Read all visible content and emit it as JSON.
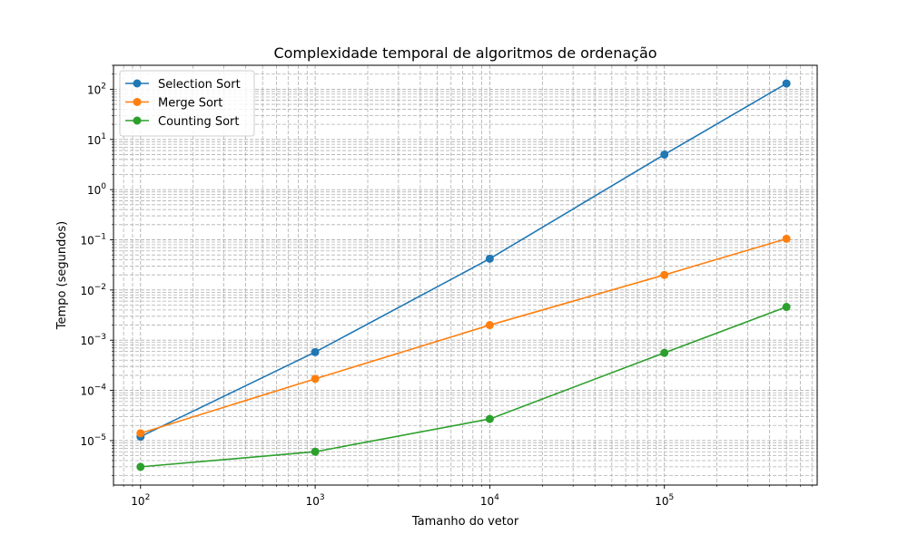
{
  "chart_data": {
    "type": "line",
    "title": "Complexidade temporal de algoritmos de ordenação",
    "xlabel": "Tamanho do vetor",
    "ylabel": "Tempo (segundos)",
    "x_scale": "log",
    "y_scale": "log",
    "xlim": [
      70,
      750000
    ],
    "ylim": [
      1.3e-06,
      300
    ],
    "x_ticks": [
      {
        "value": 100,
        "base": "10",
        "exp": "2"
      },
      {
        "value": 1000,
        "base": "10",
        "exp": "3"
      },
      {
        "value": 10000,
        "base": "10",
        "exp": "4"
      },
      {
        "value": 100000,
        "base": "10",
        "exp": "5"
      }
    ],
    "y_ticks": [
      {
        "value": 1e-05,
        "base": "10",
        "exp": "−5"
      },
      {
        "value": 0.0001,
        "base": "10",
        "exp": "−4"
      },
      {
        "value": 0.001,
        "base": "10",
        "exp": "−3"
      },
      {
        "value": 0.01,
        "base": "10",
        "exp": "−2"
      },
      {
        "value": 0.1,
        "base": "10",
        "exp": "−1"
      },
      {
        "value": 1,
        "base": "10",
        "exp": "0"
      },
      {
        "value": 10,
        "base": "10",
        "exp": "1"
      },
      {
        "value": 100,
        "base": "10",
        "exp": "2"
      }
    ],
    "grid": true,
    "grid_minor": true,
    "legend_position": "upper-left",
    "x": [
      100,
      1000,
      10000,
      100000,
      500000
    ],
    "series": [
      {
        "name": "Selection Sort",
        "color": "#1f77b4",
        "values": [
          1.2e-05,
          0.00058,
          0.042,
          5.0,
          130
        ]
      },
      {
        "name": "Merge Sort",
        "color": "#ff7f0e",
        "values": [
          1.4e-05,
          0.00017,
          0.002,
          0.02,
          0.105
        ]
      },
      {
        "name": "Counting Sort",
        "color": "#2ca02c",
        "values": [
          3e-06,
          6e-06,
          2.7e-05,
          0.00056,
          0.0046
        ]
      }
    ]
  }
}
